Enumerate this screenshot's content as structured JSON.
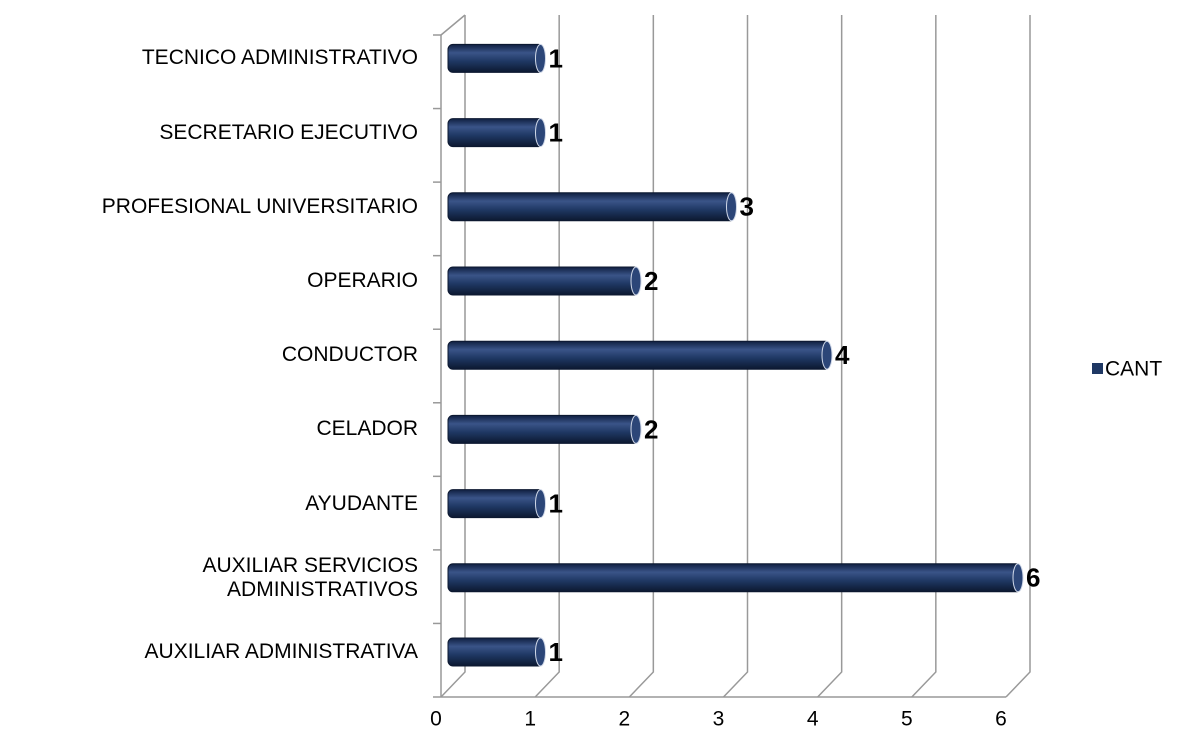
{
  "chart_data": {
    "type": "bar",
    "orientation": "horizontal",
    "categories": [
      "AUXILIAR ADMINISTRATIVA",
      "AUXILIAR SERVICIOS ADMINISTRATIVOS",
      "AYUDANTE",
      "CELADOR",
      "CONDUCTOR",
      "OPERARIO",
      "PROFESIONAL UNIVERSITARIO",
      "SECRETARIO EJECUTIVO",
      "TECNICO ADMINISTRATIVO"
    ],
    "series": [
      {
        "name": "CANT",
        "color": "#1f3864",
        "values": [
          1,
          6,
          1,
          2,
          4,
          2,
          3,
          1,
          1
        ]
      }
    ],
    "xlim": [
      0,
      6
    ],
    "xticks": [
      0,
      1,
      2,
      3,
      4,
      5,
      6
    ],
    "grid": true,
    "legend": "right"
  }
}
